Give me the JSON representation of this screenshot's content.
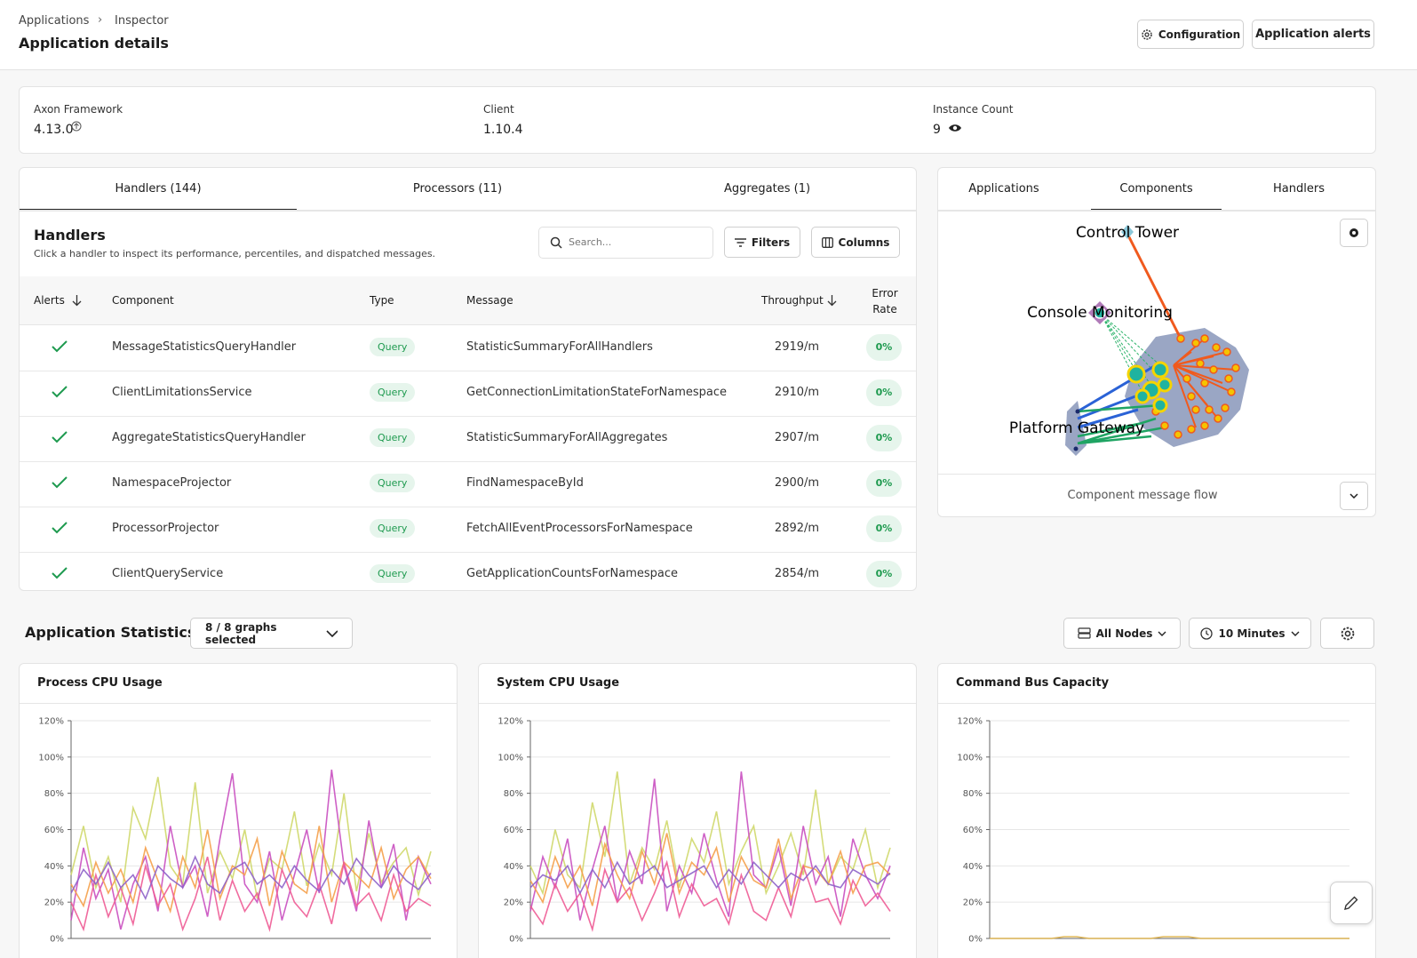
{
  "header": {
    "breadcrumb": [
      "Applications",
      "Inspector"
    ],
    "title": "Application details",
    "buttons": [
      "Configuration",
      "Application alerts"
    ]
  },
  "info": [
    {
      "label": "Axon Framework",
      "value": "4.13.0"
    },
    {
      "label": "Client",
      "value": "1.10.4"
    },
    {
      "label": "Instance Count",
      "value": "9"
    }
  ],
  "tabs": [
    "Handlers (144)",
    "Processors (11)",
    "Aggregates (1)"
  ],
  "handlers": {
    "title": "Handlers",
    "description": "Click a handler to inspect its performance, percentiles, and dispatched messages.",
    "search_placeholder": "Search...",
    "buttons": [
      "Filters",
      "Columns"
    ],
    "columns": [
      "Alerts",
      "Component",
      "Type",
      "Message",
      "Throughput",
      "Error Rate"
    ],
    "rows": [
      [
        "MessageStatisticsQueryHandler",
        "Query",
        "StatisticSummaryForAllHandlers",
        "2919/m",
        "0%"
      ],
      [
        "ClientLimitationsService",
        "Query",
        "GetConnectionLimitationStateForNamespace",
        "2910/m",
        "0%"
      ],
      [
        "AggregateStatisticsQueryHandler",
        "Query",
        "StatisticSummaryForAllAggregates",
        "2907/m",
        "0%"
      ],
      [
        "NamespaceProjector",
        "Query",
        "FindNamespaceById",
        "2900/m",
        "0%"
      ],
      [
        "ProcessorProjector",
        "Query",
        "FetchAllEventProcessorsForNamespace",
        "2892/m",
        "0%"
      ],
      [
        "ClientQueryService",
        "Query",
        "GetApplicationCountsForNamespace",
        "2854/m",
        "0%"
      ]
    ]
  },
  "graph_panel": {
    "tabs": [
      "Applications",
      "Components",
      "Handlers"
    ],
    "nodes": [
      "Control Tower",
      "Console Monitoring",
      "Platform Gateway"
    ],
    "caption": "Component message flow"
  },
  "statistics": {
    "title": "Application Statistics",
    "graphs_selected": "8 / 8 graphs selected",
    "nodes": "All Nodes",
    "range": "10 Minutes"
  },
  "chart_data": [
    {
      "type": "line",
      "title": "Process CPU Usage",
      "ylim": [
        0,
        120
      ],
      "yticks": [
        {
          "value": 0,
          "label": "0%"
        },
        {
          "value": 20,
          "label": "20%"
        },
        {
          "value": 40,
          "label": "40%"
        },
        {
          "value": 60,
          "label": "60%"
        },
        {
          "value": 80,
          "label": "80%"
        },
        {
          "value": 100,
          "label": "100%"
        },
        {
          "value": 120,
          "label": "120%"
        }
      ],
      "grid": true,
      "series": [
        {
          "color": "#cfd86a",
          "values": [
            35,
            62,
            28,
            45,
            20,
            72,
            55,
            89,
            40,
            30,
            86,
            25,
            48,
            33,
            60,
            22,
            44,
            38,
            70,
            29,
            52,
            35,
            80,
            26,
            58,
            31,
            42,
            50,
            24,
            48
          ]
        },
        {
          "color": "#c94fc0",
          "values": [
            10,
            50,
            22,
            38,
            5,
            30,
            45,
            15,
            62,
            28,
            40,
            12,
            55,
            91,
            30,
            20,
            48,
            10,
            35,
            60,
            25,
            93,
            40,
            15,
            65,
            28,
            52,
            10,
            45,
            30
          ]
        },
        {
          "color": "#f5a04a",
          "values": [
            30,
            18,
            42,
            25,
            38,
            20,
            50,
            32,
            15,
            45,
            28,
            60,
            22,
            40,
            35,
            55,
            18,
            48,
            30,
            25,
            62,
            20,
            42,
            35,
            28,
            50,
            22,
            38,
            45,
            33
          ]
        },
        {
          "color": "#ee5b95",
          "values": [
            20,
            5,
            35,
            12,
            28,
            8,
            40,
            18,
            30,
            5,
            22,
            45,
            10,
            32,
            15,
            25,
            5,
            38,
            20,
            12,
            30,
            8,
            42,
            18,
            25,
            10,
            35,
            15,
            22,
            18
          ]
        },
        {
          "color": "#8e63c9",
          "values": [
            25,
            38,
            30,
            42,
            28,
            35,
            22,
            40,
            33,
            28,
            45,
            30,
            25,
            38,
            42,
            30,
            35,
            28,
            40,
            32,
            26,
            38,
            30,
            44,
            35,
            28,
            40,
            32,
            27,
            36
          ]
        }
      ]
    },
    {
      "type": "line",
      "title": "System CPU Usage",
      "ylim": [
        0,
        120
      ],
      "yticks": [
        {
          "value": 0,
          "label": "0%"
        },
        {
          "value": 20,
          "label": "20%"
        },
        {
          "value": 40,
          "label": "40%"
        },
        {
          "value": 60,
          "label": "60%"
        },
        {
          "value": 80,
          "label": "80%"
        },
        {
          "value": 100,
          "label": "100%"
        },
        {
          "value": 120,
          "label": "120%"
        }
      ],
      "grid": true,
      "series": [
        {
          "color": "#cfd86a",
          "values": [
            40,
            25,
            60,
            35,
            28,
            75,
            45,
            92,
            30,
            50,
            38,
            65,
            28,
            55,
            42,
            70,
            30,
            48,
            62,
            25,
            40,
            58,
            35,
            82,
            30,
            45,
            38,
            60,
            28,
            50
          ]
        },
        {
          "color": "#c94fc0",
          "values": [
            15,
            45,
            28,
            55,
            10,
            38,
            62,
            20,
            48,
            30,
            88,
            15,
            40,
            25,
            58,
            32,
            12,
            92,
            35,
            28,
            50,
            18,
            62,
            30,
            45,
            12,
            55,
            35,
            22,
            40
          ]
        },
        {
          "color": "#f5a04a",
          "values": [
            32,
            20,
            45,
            28,
            40,
            18,
            52,
            35,
            22,
            48,
            30,
            58,
            25,
            42,
            35,
            50,
            20,
            45,
            32,
            28,
            55,
            22,
            40,
            38,
            30,
            48,
            25,
            40,
            42,
            35
          ]
        },
        {
          "color": "#ee5b95",
          "values": [
            18,
            8,
            30,
            15,
            25,
            5,
            38,
            20,
            28,
            10,
            25,
            42,
            12,
            30,
            18,
            22,
            8,
            35,
            15,
            10,
            28,
            12,
            40,
            20,
            22,
            8,
            32,
            18,
            25,
            15
          ]
        },
        {
          "color": "#8e63c9",
          "values": [
            28,
            35,
            32,
            40,
            25,
            38,
            28,
            42,
            30,
            35,
            40,
            28,
            32,
            36,
            40,
            28,
            38,
            30,
            42,
            35,
            28,
            36,
            32,
            40,
            30,
            28,
            38,
            34,
            30,
            36
          ]
        }
      ]
    },
    {
      "type": "line",
      "title": "Command Bus Capacity",
      "ylim": [
        0,
        120
      ],
      "yticks": [
        {
          "value": 0,
          "label": "0%"
        },
        {
          "value": 20,
          "label": "20%"
        },
        {
          "value": 40,
          "label": "40%"
        },
        {
          "value": 60,
          "label": "60%"
        },
        {
          "value": 80,
          "label": "80%"
        },
        {
          "value": 100,
          "label": "100%"
        },
        {
          "value": 120,
          "label": "120%"
        }
      ],
      "grid": true,
      "series": [
        {
          "color": "#e0b24a",
          "values": [
            0,
            0,
            0,
            0,
            0,
            0,
            1,
            1,
            0,
            0,
            0,
            0,
            0,
            0,
            1,
            1,
            1,
            0,
            0,
            0,
            0,
            0,
            0,
            0,
            0,
            0,
            0,
            0,
            0,
            0
          ]
        }
      ]
    }
  ]
}
